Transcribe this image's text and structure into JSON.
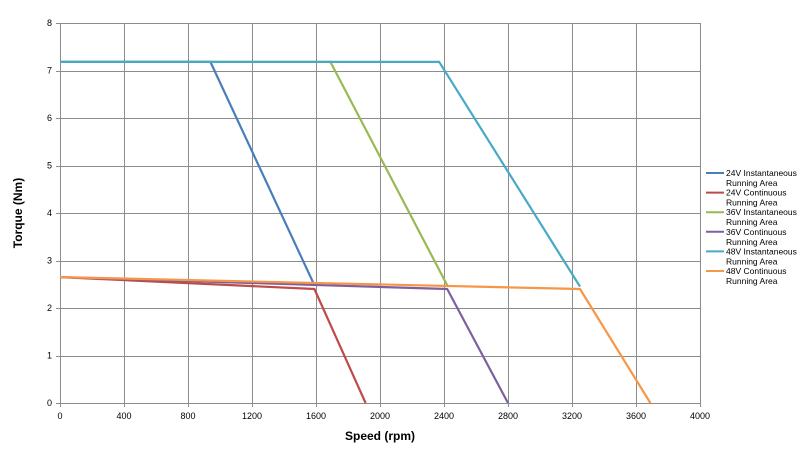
{
  "chart_data": {
    "type": "line",
    "title": "",
    "xlabel": "Speed (rpm)",
    "ylabel": "Torque (Nm)",
    "xlim": [
      0,
      4000
    ],
    "ylim": [
      0,
      8
    ],
    "xticks": [
      0,
      400,
      800,
      1200,
      1600,
      2000,
      2400,
      2800,
      3200,
      3600,
      4000
    ],
    "yticks": [
      0,
      1,
      2,
      3,
      4,
      5,
      6,
      7,
      8
    ],
    "grid": true,
    "legend_position": "right",
    "series": [
      {
        "name": "24V Instantaneous Running Area",
        "color": "#4a7ebb",
        "x": [
          0,
          940,
          1590
        ],
        "y": [
          7.18,
          7.18,
          2.48
        ]
      },
      {
        "name": "24V Continuous Running Area",
        "color": "#be4b48",
        "x": [
          0,
          1590,
          1910
        ],
        "y": [
          2.65,
          2.4,
          0
        ]
      },
      {
        "name": "36V Instantaneous Running Area",
        "color": "#98b954",
        "x": [
          0,
          1690,
          2420
        ],
        "y": [
          7.18,
          7.18,
          2.48
        ]
      },
      {
        "name": "36V Continuous Running Area",
        "color": "#7d60a0",
        "x": [
          0,
          2420,
          2800
        ],
        "y": [
          2.65,
          2.4,
          0
        ]
      },
      {
        "name": "48V Instantaneous Running Area",
        "color": "#46aac5",
        "x": [
          0,
          2370,
          3250
        ],
        "y": [
          7.18,
          7.18,
          2.45
        ]
      },
      {
        "name": "48V Continuous Running Area",
        "color": "#f79646",
        "x": [
          0,
          3250,
          3690
        ],
        "y": [
          2.65,
          2.4,
          0
        ]
      }
    ]
  }
}
